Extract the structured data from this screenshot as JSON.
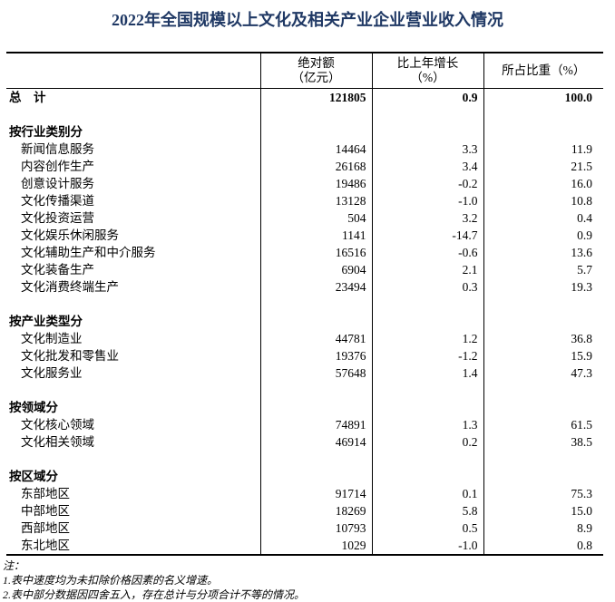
{
  "title": "2022年全国规模以上文化及相关产业企业营业收入情况",
  "table": {
    "header": {
      "category": "",
      "abs": [
        "绝对额",
        "（亿元）"
      ],
      "growth": [
        "比上年增长",
        "（%）"
      ],
      "share": [
        "所占比重（%）"
      ]
    },
    "rows": [
      {
        "type": "total",
        "label": "总　计",
        "abs": "121805",
        "growth": "0.9",
        "share": "100.0"
      },
      {
        "type": "blank",
        "label": "",
        "abs": "",
        "growth": "",
        "share": ""
      },
      {
        "type": "section",
        "label": "按行业类别分",
        "abs": "",
        "growth": "",
        "share": ""
      },
      {
        "type": "item",
        "label": "新闻信息服务",
        "abs": "14464",
        "growth": "3.3",
        "share": "11.9"
      },
      {
        "type": "item",
        "label": "内容创作生产",
        "abs": "26168",
        "growth": "3.4",
        "share": "21.5"
      },
      {
        "type": "item",
        "label": "创意设计服务",
        "abs": "19486",
        "growth": "-0.2",
        "share": "16.0"
      },
      {
        "type": "item",
        "label": "文化传播渠道",
        "abs": "13128",
        "growth": "-1.0",
        "share": "10.8"
      },
      {
        "type": "item",
        "label": "文化投资运营",
        "abs": "504",
        "growth": "3.2",
        "share": "0.4"
      },
      {
        "type": "item",
        "label": "文化娱乐休闲服务",
        "abs": "1141",
        "growth": "-14.7",
        "share": "0.9"
      },
      {
        "type": "item",
        "label": "文化辅助生产和中介服务",
        "abs": "16516",
        "growth": "-0.6",
        "share": "13.6"
      },
      {
        "type": "item",
        "label": "文化装备生产",
        "abs": "6904",
        "growth": "2.1",
        "share": "5.7"
      },
      {
        "type": "item",
        "label": "文化消费终端生产",
        "abs": "23494",
        "growth": "0.3",
        "share": "19.3"
      },
      {
        "type": "blank",
        "label": "",
        "abs": "",
        "growth": "",
        "share": ""
      },
      {
        "type": "section",
        "label": "按产业类型分",
        "abs": "",
        "growth": "",
        "share": ""
      },
      {
        "type": "item",
        "label": "文化制造业",
        "abs": "44781",
        "growth": "1.2",
        "share": "36.8"
      },
      {
        "type": "item",
        "label": "文化批发和零售业",
        "abs": "19376",
        "growth": "-1.2",
        "share": "15.9"
      },
      {
        "type": "item",
        "label": "文化服务业",
        "abs": "57648",
        "growth": "1.4",
        "share": "47.3"
      },
      {
        "type": "blank",
        "label": "",
        "abs": "",
        "growth": "",
        "share": ""
      },
      {
        "type": "section",
        "label": "按领域分",
        "abs": "",
        "growth": "",
        "share": ""
      },
      {
        "type": "item",
        "label": "文化核心领域",
        "abs": "74891",
        "growth": "1.3",
        "share": "61.5"
      },
      {
        "type": "item",
        "label": "文化相关领域",
        "abs": "46914",
        "growth": "0.2",
        "share": "38.5"
      },
      {
        "type": "blank",
        "label": "",
        "abs": "",
        "growth": "",
        "share": ""
      },
      {
        "type": "section",
        "label": "按区域分",
        "abs": "",
        "growth": "",
        "share": ""
      },
      {
        "type": "item",
        "label": "东部地区",
        "abs": "91714",
        "growth": "0.1",
        "share": "75.3"
      },
      {
        "type": "item",
        "label": "中部地区",
        "abs": "18269",
        "growth": "5.8",
        "share": "15.0"
      },
      {
        "type": "item",
        "label": "西部地区",
        "abs": "10793",
        "growth": "0.5",
        "share": "8.9"
      },
      {
        "type": "item",
        "label": "东北地区",
        "abs": "1029",
        "growth": "-1.0",
        "share": "0.8"
      }
    ]
  },
  "notes": {
    "label": "注：",
    "items": [
      "1.表中速度均为未扣除价格因素的名义增速。",
      "2.表中部分数据因四舍五入，存在总计与分项合计不等的情况。"
    ]
  },
  "colors": {
    "title": "#1F3864",
    "text": "#000000",
    "border": "#000000"
  }
}
